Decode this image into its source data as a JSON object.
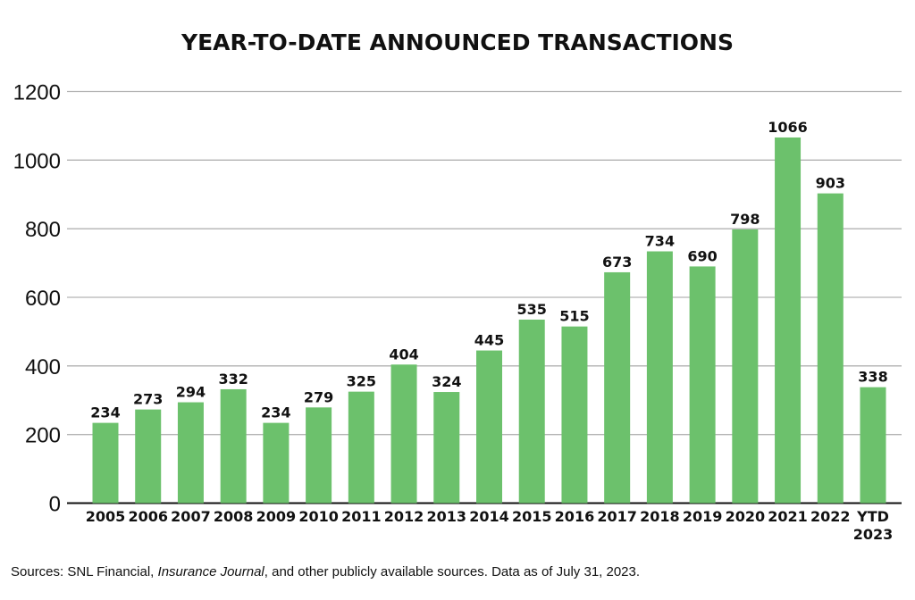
{
  "chart_data": {
    "type": "bar",
    "title": "YEAR-TO-DATE ANNOUNCED TRANSACTIONS",
    "categories": [
      "2005",
      "2006",
      "2007",
      "2008",
      "2009",
      "2010",
      "2011",
      "2012",
      "2013",
      "2014",
      "2015",
      "2016",
      "2017",
      "2018",
      "2019",
      "2020",
      "2021",
      "2022",
      "YTD 2023"
    ],
    "values": [
      234,
      273,
      294,
      332,
      234,
      279,
      325,
      404,
      324,
      445,
      535,
      515,
      673,
      734,
      690,
      798,
      1066,
      903,
      338
    ],
    "xlabel": "",
    "ylabel": "",
    "ylim": [
      0,
      1200
    ],
    "yticks": [
      0,
      200,
      400,
      600,
      800,
      1000,
      1200
    ],
    "grid": true,
    "bar_color": "#6cc16c"
  },
  "source": {
    "prefix": "Sources: SNL Financial, ",
    "italic": "Insurance Journal",
    "suffix": ", and other publicly available sources. Data as of July 31, 2023."
  }
}
